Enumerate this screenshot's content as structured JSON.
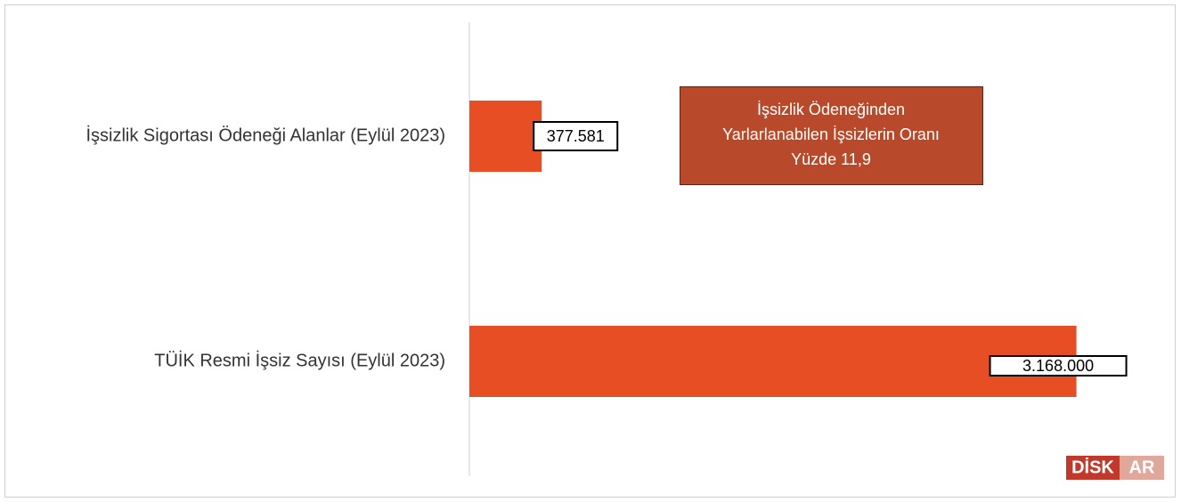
{
  "chart_data": {
    "type": "hbar",
    "categories": [
      "İşsizlik Sigortası Ödeneği Alanlar (Eylül 2023)",
      "TÜİK Resmi İşsiz Sayısı (Eylül 2023)"
    ],
    "values": [
      377581,
      3168000
    ],
    "value_labels": [
      "377.581",
      "3.168.000"
    ],
    "color": "#e84e23",
    "xlim": [
      0,
      3500000
    ],
    "annotation": [
      "İşsizlik Ödeneğinden",
      "Yarlarlanabilen İşsizlerin Oranı",
      "Yüzde 11,9"
    ],
    "annotation_color": "#b84a2b",
    "logo": [
      "DİSK",
      "AR"
    ]
  }
}
